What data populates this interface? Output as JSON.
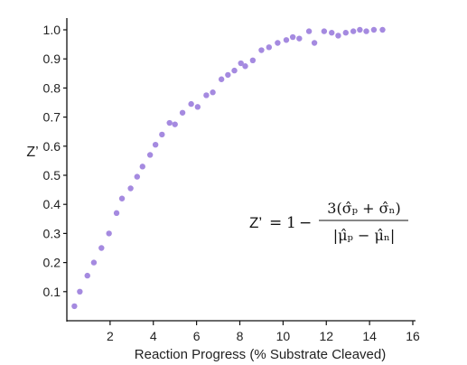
{
  "chart_data": {
    "type": "scatter",
    "xlabel": "Reaction Progress (% Substrate Cleaved)",
    "ylabel": "Z’",
    "xlim": [
      0,
      16
    ],
    "ylim": [
      0,
      1.0
    ],
    "x_ticks": [
      2,
      4,
      6,
      8,
      10,
      12,
      14,
      16
    ],
    "y_ticks": [
      0.1,
      0.2,
      0.3,
      0.4,
      0.5,
      0.6,
      0.7,
      0.8,
      0.9,
      1.0
    ],
    "x_tick_labels": [
      "2",
      "4",
      "6",
      "8",
      "10",
      "12",
      "14",
      "16"
    ],
    "y_tick_labels": [
      "0.1",
      "0.2",
      "0.3",
      "0.4",
      "0.5",
      "0.6",
      "0.7",
      "0.8",
      "0.9",
      "1.0"
    ],
    "grid": false,
    "marker_color": "#a58ae0",
    "series": [
      {
        "points": [
          [
            0.35,
            0.05
          ],
          [
            0.6,
            0.1
          ],
          [
            0.95,
            0.155
          ],
          [
            1.25,
            0.2
          ],
          [
            1.6,
            0.25
          ],
          [
            1.95,
            0.3
          ],
          [
            2.3,
            0.37
          ],
          [
            2.55,
            0.42
          ],
          [
            2.95,
            0.455
          ],
          [
            3.25,
            0.495
          ],
          [
            3.5,
            0.53
          ],
          [
            3.85,
            0.57
          ],
          [
            4.1,
            0.605
          ],
          [
            4.4,
            0.64
          ],
          [
            4.75,
            0.68
          ],
          [
            5.0,
            0.675
          ],
          [
            5.35,
            0.715
          ],
          [
            5.75,
            0.745
          ],
          [
            6.05,
            0.735
          ],
          [
            6.45,
            0.775
          ],
          [
            6.75,
            0.785
          ],
          [
            7.15,
            0.83
          ],
          [
            7.45,
            0.845
          ],
          [
            7.75,
            0.86
          ],
          [
            8.05,
            0.885
          ],
          [
            8.25,
            0.875
          ],
          [
            8.6,
            0.895
          ],
          [
            9.0,
            0.93
          ],
          [
            9.35,
            0.94
          ],
          [
            9.75,
            0.955
          ],
          [
            10.15,
            0.965
          ],
          [
            10.45,
            0.975
          ],
          [
            10.75,
            0.97
          ],
          [
            11.2,
            0.995
          ],
          [
            11.45,
            0.955
          ],
          [
            11.9,
            0.995
          ],
          [
            12.25,
            0.99
          ],
          [
            12.55,
            0.98
          ],
          [
            12.9,
            0.99
          ],
          [
            13.25,
            0.995
          ],
          [
            13.55,
            1.0
          ],
          [
            13.85,
            0.995
          ],
          [
            14.2,
            1.0
          ],
          [
            14.6,
            1.0
          ]
        ]
      }
    ],
    "equation": {
      "lhs": "Z’",
      "equals": "=",
      "one": "1",
      "minus": "−",
      "numerator": "3(σ̂ₚ + σ̂ₙ)",
      "denominator": "|μ̂ₚ − μ̂ₙ|"
    }
  }
}
